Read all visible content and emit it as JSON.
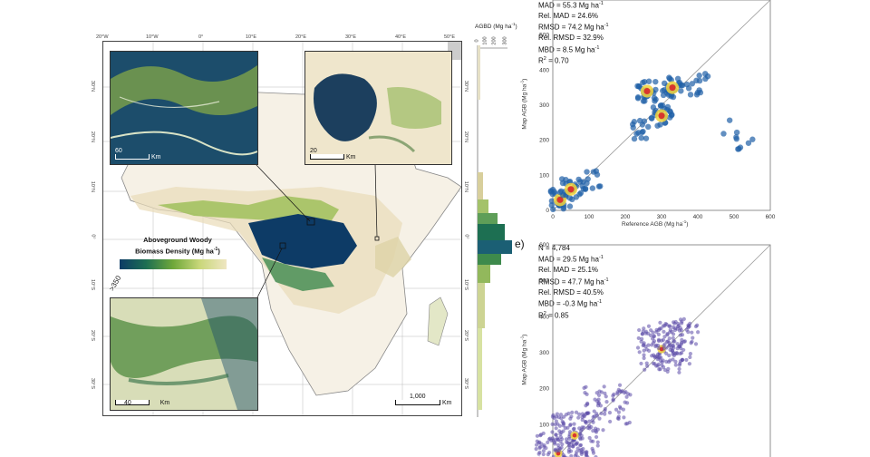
{
  "map": {
    "lon_labels": [
      "20°W",
      "10°W",
      "0°",
      "10°E",
      "20°E",
      "30°E",
      "40°E",
      "50°E"
    ],
    "lat_labels": [
      "30°N",
      "20°N",
      "10°N",
      "0°",
      "10°S",
      "20°S",
      "30°S"
    ],
    "legend_title_line1": "Aboveground Woody",
    "legend_title_line2": "Biomass Density (Mg ha",
    "legend_title_sup": "-1",
    "legend_title_end": ")",
    "legend_max": ">350",
    "colormap": [
      "#0d3b66",
      "#1d6f52",
      "#6fa83a",
      "#c9d77a",
      "#efe6c2"
    ],
    "inset_top_left_scale": "60",
    "inset_top_right_scale": "20",
    "inset_bottom_scale": "40",
    "scale_unit": "Km",
    "main_scale": "1,000",
    "main_scale_unit": "Km"
  },
  "histogram": {
    "title": "AGBD (Mg ha",
    "title_sup": "-1",
    "title_end": ")",
    "ticks": [
      "0",
      "100",
      "200",
      "300"
    ]
  },
  "scatter_d": {
    "stat_mad": "MAD =  55.3 Mg ha",
    "stat_relmad": "Rel. MAD = 24.6%",
    "stat_rmsd": "RMSD = 74.2 Mg ha",
    "stat_relrmsd": "Rel. RMSD =  32.9%",
    "stat_mbd": "MBD = 8.5 Mg ha",
    "stat_r2": "R",
    "stat_r2_val": " = 0.70",
    "xlabel": "Reference AGB (Mg ha",
    "xlabel_end": ")",
    "ylabel": "Map AGB (Mg ha",
    "sup": "-1"
  },
  "scatter_e": {
    "letter": "e)",
    "stat_n": "N = 4,784",
    "stat_mad": "MAD = 29.5 Mg ha",
    "stat_relmad": "Rel. MAD = 25.1%",
    "stat_rmsd": "RMSD = 47.7 Mg ha",
    "stat_relrmsd": "Rel. RMSD = 40.5%",
    "stat_mbd": "MBD = -0.3 Mg ha",
    "stat_r2": "R",
    "stat_r2_val": " = 0.85",
    "ylabel": "Map AGB (Mg ha",
    "sup": "-1"
  },
  "chart_data": [
    {
      "type": "scatter",
      "title": "",
      "xlabel": "Reference AGB (Mg ha-1)",
      "ylabel": "Map AGB (Mg ha-1)",
      "xlim": [
        0,
        600
      ],
      "ylim": [
        0,
        600
      ],
      "x_ticks": [
        0,
        100,
        200,
        300,
        400,
        500,
        600
      ],
      "y_ticks": [
        0,
        100,
        200,
        300,
        400,
        500
      ],
      "clusters": [
        {
          "x": 20,
          "y": 30,
          "density": "high"
        },
        {
          "x": 50,
          "y": 60,
          "density": "high"
        },
        {
          "x": 110,
          "y": 90,
          "density": "medium"
        },
        {
          "x": 250,
          "y": 230,
          "density": "medium"
        },
        {
          "x": 300,
          "y": 270,
          "density": "high"
        },
        {
          "x": 260,
          "y": 340,
          "density": "high"
        },
        {
          "x": 330,
          "y": 350,
          "density": "high"
        },
        {
          "x": 400,
          "y": 360,
          "density": "medium"
        },
        {
          "x": 500,
          "y": 230,
          "density": "low"
        },
        {
          "x": 540,
          "y": 190,
          "density": "low"
        }
      ],
      "identity_line": true
    },
    {
      "type": "scatter",
      "title": "",
      "ylabel": "Map AGB (Mg ha-1)",
      "xlim": [
        0,
        600
      ],
      "ylim": [
        0,
        600
      ],
      "y_ticks": [
        100,
        200,
        300,
        400,
        500,
        600
      ],
      "n": 4784,
      "clusters": [
        {
          "x": 15,
          "y": 20,
          "density": "high"
        },
        {
          "x": 60,
          "y": 70,
          "density": "high"
        },
        {
          "x": 150,
          "y": 150,
          "density": "medium"
        },
        {
          "x": 300,
          "y": 310,
          "density": "high"
        },
        {
          "x": 340,
          "y": 330,
          "density": "medium"
        }
      ],
      "identity_line": true
    }
  ]
}
